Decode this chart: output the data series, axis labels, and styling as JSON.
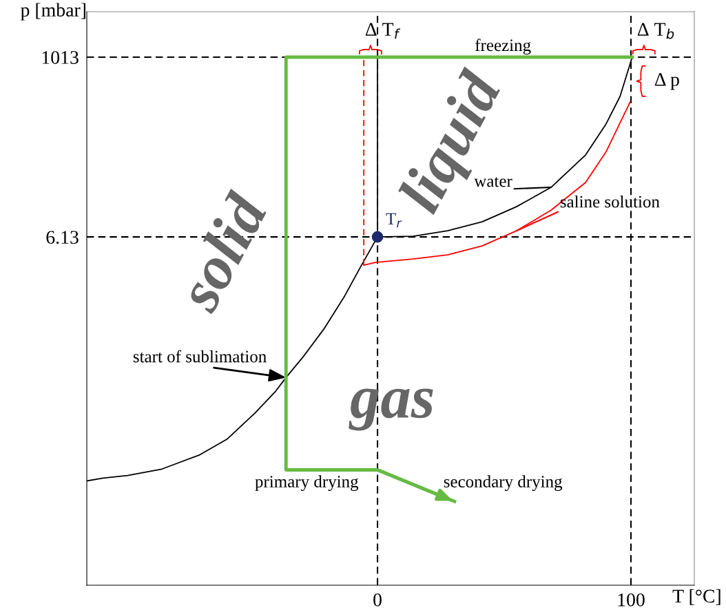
{
  "chart_data": {
    "type": "line",
    "xlabel": "T [°C]",
    "ylabel": "p [mbar]",
    "log": true,
    "xlim": [
      -114.7,
      125
    ],
    "ylim": [
      0.00031,
      3680
    ],
    "xticks": [
      0,
      100
    ],
    "yticks": [
      6.13,
      1013
    ],
    "series": [
      {
        "color": "#000000",
        "x": [
          -114.7,
          -108.2,
          -98.6,
          -85.1,
          -70.1,
          -59.2,
          -48.4,
          -40.2,
          -36.1,
          -29.3,
          -21.2,
          -13.0,
          -6.3,
          0,
          14.1,
          27.7,
          41.3,
          54.9,
          68.5,
          82.1,
          90.2,
          95.7,
          100.5
        ],
        "values": [
          0.006,
          0.0065,
          0.007,
          0.0084,
          0.0126,
          0.0198,
          0.041,
          0.0765,
          0.113,
          0.204,
          0.446,
          1.14,
          2.75,
          6.13,
          6.25,
          7.31,
          9.44,
          14.5,
          25.1,
          62.9,
          152,
          332,
          1013
        ]
      },
      {
        "color": "#000000",
        "x": [
          0,
          0
        ],
        "values": [
          6.13,
          1013
        ]
      },
      {
        "color": "#ff0000",
        "x": [
          -5.4,
          -0.8,
          14.1,
          27.7,
          41.3,
          54.9,
          68.5,
          82.1,
          90.2,
          99.7
        ],
        "values": [
          2.75,
          2.97,
          3.28,
          3.69,
          4.75,
          7.31,
          13.1,
          28.8,
          69,
          284
        ]
      },
      {
        "color": "#ff0000",
        "line_style": "dashed",
        "x": [
          -5.4,
          -5.4
        ],
        "values": [
          2.75,
          1013
        ]
      },
      {
        "color": "#66bb44",
        "x": [
          100.5,
          -36.1,
          -36.1,
          0,
          30.4
        ],
        "values": [
          1013,
          1013,
          0.0082,
          0.0082,
          0.00334
        ]
      },
      {
        "type": "scatter",
        "marker": "circle",
        "color": "#1f2a6b",
        "x": [
          0
        ],
        "values": [
          6.13
        ]
      }
    ],
    "ref_lines": [
      {
        "axis": "y",
        "value": 1013,
        "color": "#000000",
        "line_style": "dashed"
      },
      {
        "axis": "y",
        "value": 6.13,
        "color": "#000000",
        "line_style": "dashed"
      },
      {
        "axis": "x",
        "value": 0,
        "color": "#000000",
        "line_style": "dashed"
      },
      {
        "axis": "x",
        "value": 100,
        "color": "#000000",
        "line_style": "dashed"
      }
    ],
    "annotations": [
      "solid",
      "liquid",
      "gas",
      "freezing",
      "Δ T$_{f}$",
      "Δ T$_{b}$",
      "Δ p",
      "water",
      "saline solution",
      "T$_{r}$",
      "start of sublimation",
      "primary drying",
      "secondary drying"
    ]
  }
}
